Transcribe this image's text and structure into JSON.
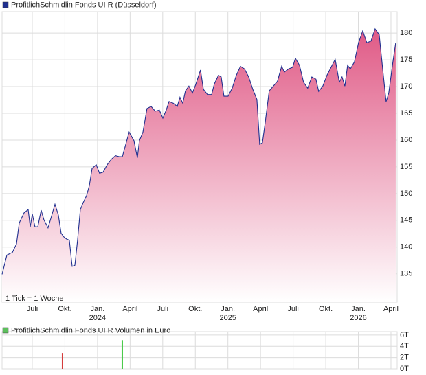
{
  "chart_data": [
    {
      "type": "area",
      "series": [
        {
          "name": "ProfitlichSchmidlin Fonds UI R (Düsseldorf)",
          "color": "#1f2f8f",
          "x": [
            0.22,
            0.66,
            1.17,
            1.55,
            1.8,
            2.24,
            2.62,
            2.81,
            3.0,
            3.25,
            3.51,
            3.82,
            4.07,
            4.45,
            4.77,
            5.09,
            5.4,
            5.65,
            5.91,
            6.16,
            6.41,
            6.67,
            6.92,
            7.17,
            7.42,
            7.68,
            7.99,
            8.25,
            8.5,
            8.88,
            9.19,
            9.51,
            9.89,
            10.27,
            10.65,
            11.03,
            11.28,
            11.6,
            11.91,
            12.35,
            12.67,
            12.86,
            13.18,
            13.55,
            13.93,
            14.31,
            14.69,
            15.01,
            15.32,
            15.58,
            15.96,
            16.34,
            16.59,
            16.84,
            17.09,
            17.41,
            17.73,
            18.04,
            18.48,
            18.74,
            19.12,
            19.5,
            19.75,
            20.13,
            20.38,
            20.63,
            21.01,
            21.39,
            21.77,
            22.15,
            22.53,
            22.91,
            23.29,
            23.67,
            23.92,
            24.17,
            24.42,
            24.8,
            25.18,
            25.56,
            25.94,
            26.19,
            26.57,
            26.95,
            27.21,
            27.58,
            27.96,
            28.34,
            28.72,
            29.1,
            29.35,
            29.73,
            30.11,
            30.49,
            30.87,
            31.25,
            31.5,
            31.76,
            32.01,
            32.26,
            32.64,
            33.02,
            33.4,
            33.78,
            34.16,
            34.54,
            34.92,
            35.3,
            35.55,
            35.8,
            36.18,
            36.44
          ],
          "values": [
            134.9,
            138.5,
            139,
            140.6,
            144.5,
            146.4,
            147,
            143.8,
            146.2,
            143.8,
            143.8,
            146.9,
            145.1,
            143.6,
            145.8,
            148,
            146,
            142.6,
            141.9,
            141.5,
            141.3,
            136.4,
            136.6,
            141.3,
            147,
            148.3,
            149.6,
            151.5,
            154.7,
            155.4,
            153.8,
            154,
            155.4,
            156.4,
            157.1,
            156.9,
            156.9,
            159.2,
            161.5,
            159.9,
            156.7,
            159.9,
            161.5,
            165.9,
            166.3,
            165.4,
            165.6,
            164.1,
            165.6,
            167.2,
            166.9,
            166.3,
            168,
            166.9,
            169.2,
            170.1,
            168.8,
            170.4,
            173.1,
            169.5,
            168.5,
            168.5,
            170.5,
            172.1,
            171.8,
            168.2,
            168.2,
            169.7,
            172.1,
            173.8,
            173.3,
            171.8,
            169.5,
            167.6,
            159.2,
            159.5,
            163.1,
            169.2,
            170.1,
            171,
            173.8,
            172.7,
            173.3,
            173.6,
            175.3,
            174,
            170.8,
            169.7,
            171.8,
            171.4,
            169.1,
            170.1,
            172.1,
            173.6,
            175.1,
            170.8,
            171.8,
            170.1,
            174,
            173.3,
            174.6,
            178.2,
            180.4,
            178.2,
            178.5,
            180.8,
            179.7,
            172.1,
            167.2,
            168.8,
            174.6,
            178.2
          ]
        }
      ],
      "annotation": "1 Tick = 1 Woche",
      "xlim": [
        0.22,
        36.57
      ],
      "xticks": [
        {
          "value": 3,
          "label": "Juli"
        },
        {
          "value": 6,
          "label": "Okt."
        },
        {
          "value": 9,
          "label": "Jan.",
          "year": "2024"
        },
        {
          "value": 12,
          "label": "April"
        },
        {
          "value": 15,
          "label": "Juli"
        },
        {
          "value": 18,
          "label": "Okt."
        },
        {
          "value": 21,
          "label": "Jan.",
          "year": "2025"
        },
        {
          "value": 24,
          "label": "April"
        },
        {
          "value": 27,
          "label": "Juli"
        },
        {
          "value": 30,
          "label": "Okt."
        },
        {
          "value": 33,
          "label": "Jan.",
          "year": "2026"
        },
        {
          "value": 36,
          "label": "April"
        }
      ],
      "ylim": [
        129.7,
        184
      ],
      "yticks": [
        135,
        140,
        145,
        150,
        155,
        160,
        165,
        170,
        175,
        180
      ],
      "grid": true
    },
    {
      "type": "bar",
      "series": [
        {
          "name": "ProfitlichSchmidlin Fonds UI R Volumen in Euro",
          "color": "#5cbf5c"
        }
      ],
      "x": [
        5.78,
        11.28
      ],
      "values": [
        2.8,
        5.1
      ],
      "colors": [
        "#d43c3c",
        "#44c844"
      ],
      "ylim": [
        0,
        6.6
      ],
      "yticks": [
        {
          "value": 0,
          "label": "0T"
        },
        {
          "value": 2,
          "label": "2T"
        },
        {
          "value": 4,
          "label": "4T"
        },
        {
          "value": 6,
          "label": "6T"
        }
      ],
      "grid": true
    }
  ]
}
